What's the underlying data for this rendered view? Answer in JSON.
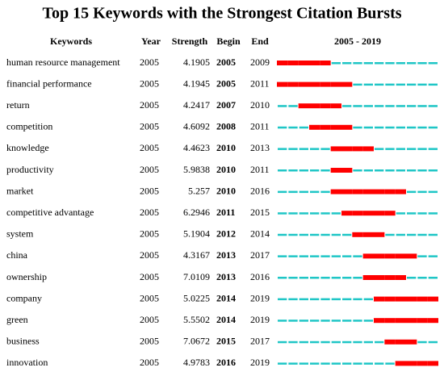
{
  "title": "Top 15 Keywords with the Strongest Citation Bursts",
  "table": {
    "header": [
      "Keywords",
      "Year",
      "Strength",
      "Begin",
      "End",
      "2005 - 2019"
    ],
    "rows": [
      [
        "human resource management",
        2005,
        4.1905,
        2005,
        2009
      ],
      [
        "financial performance",
        2005,
        4.1945,
        2005,
        2011
      ],
      [
        "return",
        2005,
        4.2417,
        2007,
        2010
      ],
      [
        "competition",
        2005,
        4.6092,
        2008,
        2011
      ],
      [
        "knowledge",
        2005,
        4.4623,
        2010,
        2013
      ],
      [
        "productivity",
        2005,
        5.9838,
        2010,
        2011
      ],
      [
        "market",
        2005,
        5.257,
        2010,
        2016
      ],
      [
        "competitive advantage",
        2005,
        6.2946,
        2011,
        2015
      ],
      [
        "system",
        2005,
        5.1904,
        2012,
        2014
      ],
      [
        "china",
        2005,
        4.3167,
        2013,
        2017
      ],
      [
        "ownership",
        2005,
        7.0109,
        2013,
        2016
      ],
      [
        "company",
        2005,
        5.0225,
        2014,
        2019
      ],
      [
        "green",
        2005,
        5.5502,
        2014,
        2019
      ],
      [
        "business",
        2005,
        7.0672,
        2015,
        2017
      ],
      [
        "innovation",
        2005,
        4.9783,
        2016,
        2019
      ]
    ]
  }
}
